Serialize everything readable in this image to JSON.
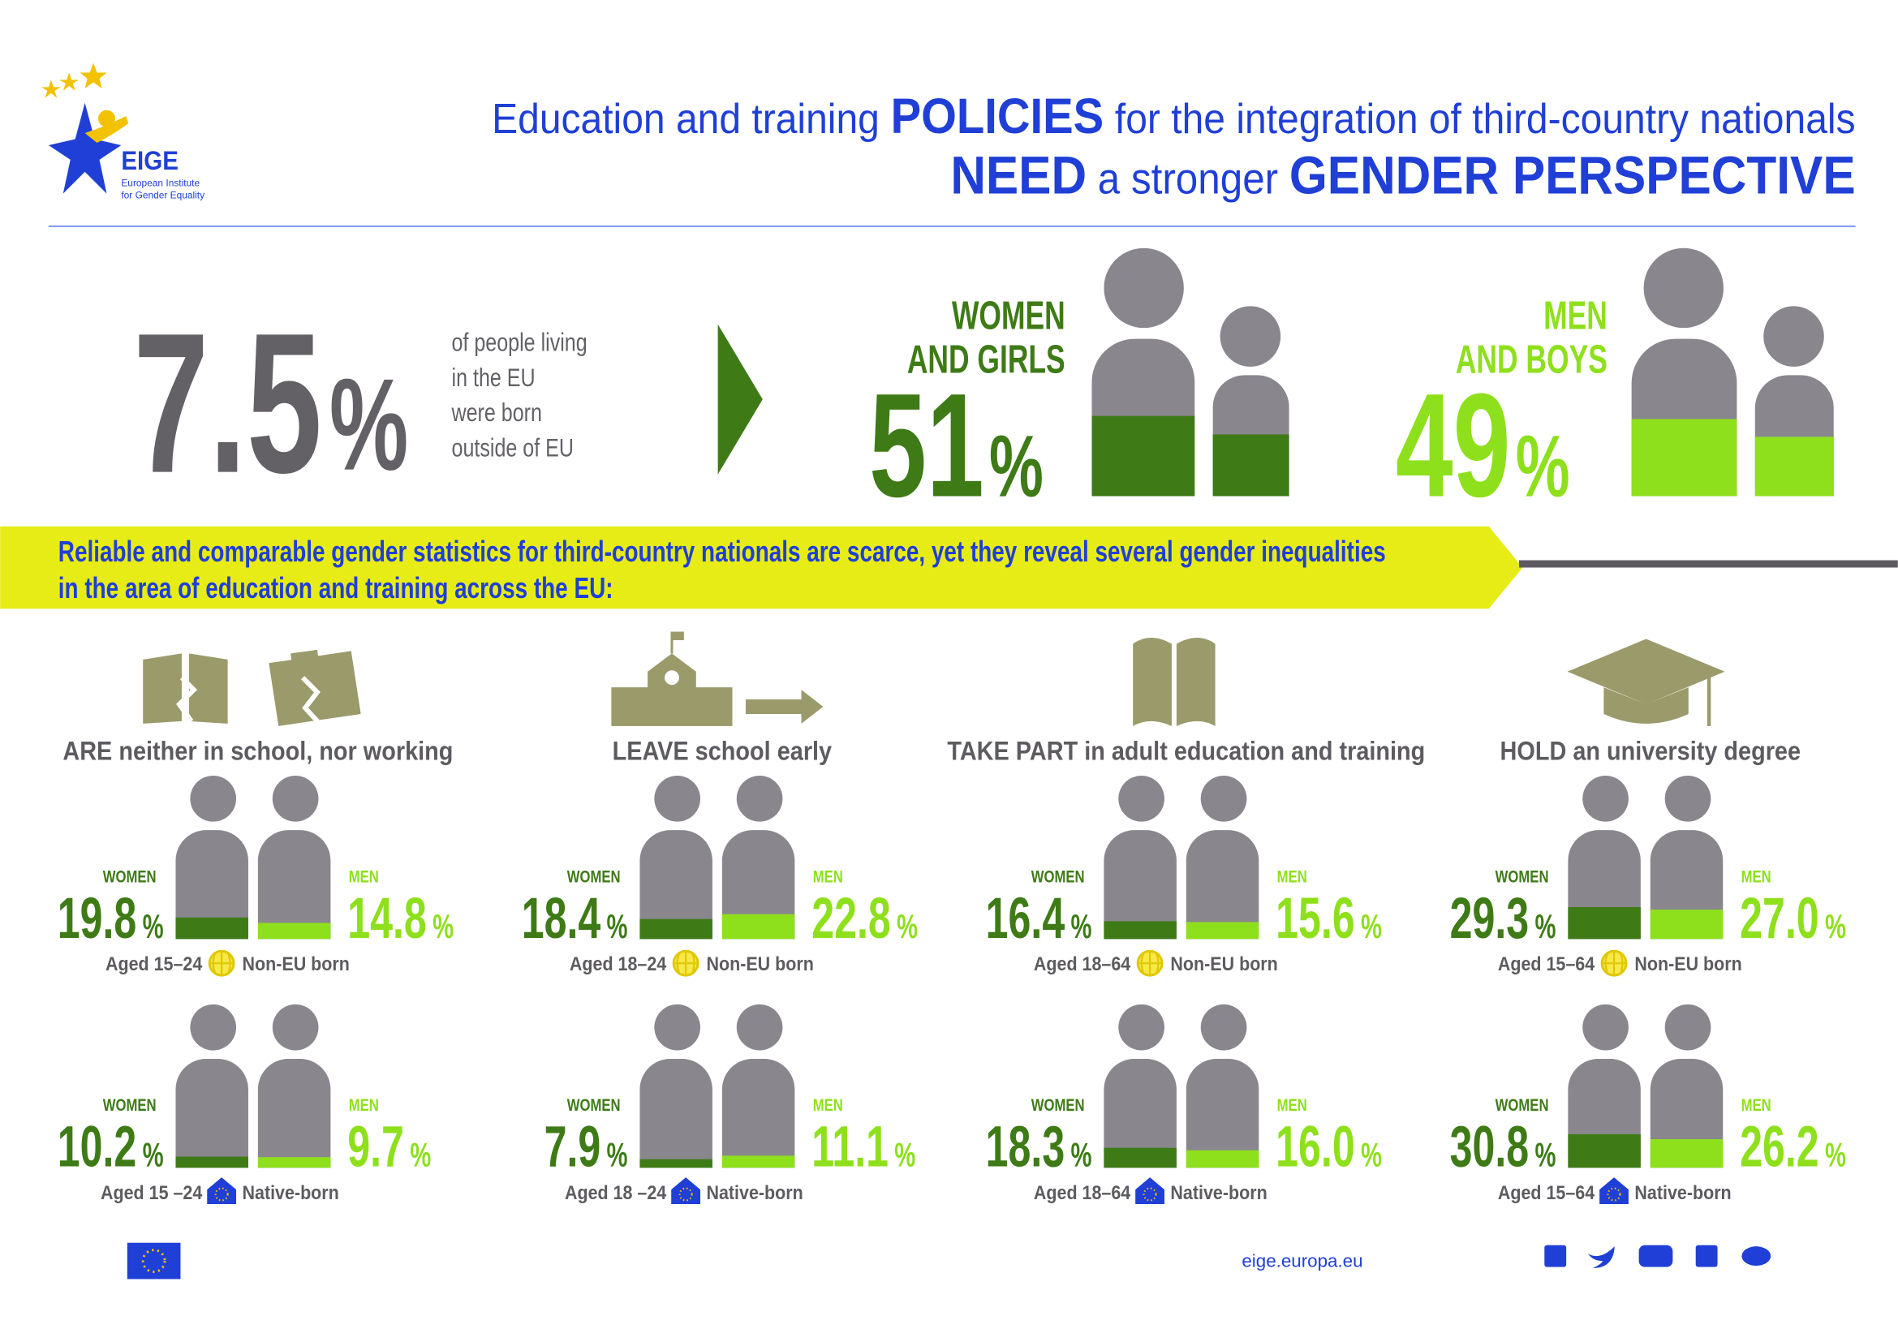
{
  "logo": {
    "name": "EIGE",
    "line1": "European Institute",
    "line2": "for Gender Equality"
  },
  "header": {
    "line1": [
      "Education and training",
      "POLICIES",
      "for the integration of third-country nationals"
    ],
    "line1_bold": [
      false,
      true,
      false
    ],
    "line2": [
      "NEED",
      "a stronger",
      "GENDER PERSPECTIVE"
    ],
    "line2_bold": [
      true,
      false,
      true
    ],
    "color": "#1f3fd6"
  },
  "headline": {
    "value": 7.5,
    "unit": "%",
    "text": [
      "of people living",
      "in the EU",
      "were born",
      "outside of EU"
    ],
    "color": "#636066"
  },
  "population": [
    {
      "label": [
        "WOMEN",
        "AND GIRLS"
      ],
      "value": 51,
      "unit": "%",
      "color": "#3e7b17"
    },
    {
      "label": [
        "MEN",
        "AND BOYS"
      ],
      "value": 49,
      "unit": "%",
      "color": "#8ee01c"
    }
  ],
  "banner": [
    "Reliable and comparable gender statistics  for third-country nationals are scarce, yet they reveal  several gender inequalities",
    "in the area of education and training across the EU:"
  ],
  "indicators": {
    "women_label": "WOMEN",
    "men_label": "MEN",
    "unit": "%",
    "women_color": "#3e7b17",
    "men_color": "#8ee01c",
    "groups": [
      {
        "title": "ARE neither in school, nor working",
        "rows": [
          {
            "women": 19.8,
            "men": 14.8,
            "age": "Aged 15–24",
            "origin": "Non-EU born"
          },
          {
            "women": 10.2,
            "men": 9.7,
            "age": "Aged 15 –24",
            "origin": "Native-born"
          }
        ]
      },
      {
        "title": "LEAVE school early",
        "rows": [
          {
            "women": 18.4,
            "men": 22.8,
            "age": "Aged 18–24",
            "origin": "Non-EU born"
          },
          {
            "women": 7.9,
            "men": 11.1,
            "age": "Aged 18 –24",
            "origin": "Native-born"
          }
        ]
      },
      {
        "title": "TAKE PART in adult education and training",
        "rows": [
          {
            "women": 16.4,
            "men": 15.6,
            "age": "Aged 18–64",
            "origin": "Non-EU born"
          },
          {
            "women": 18.3,
            "men": 16.0,
            "value_labels": {
              "men": "16.0"
            },
            "age": "Aged 18–64",
            "origin": "Native-born"
          }
        ]
      },
      {
        "title": "HOLD an university degree",
        "rows": [
          {
            "women": 29.3,
            "men": 27.0,
            "value_labels": {
              "men": "27.0"
            },
            "age": "Aged 15–64",
            "origin": "Non-EU born"
          },
          {
            "women": 30.8,
            "men": 26.2,
            "age": "Aged 15–64",
            "origin": "Native-born"
          }
        ]
      }
    ]
  },
  "footer": {
    "url": "eige.europa.eu"
  }
}
